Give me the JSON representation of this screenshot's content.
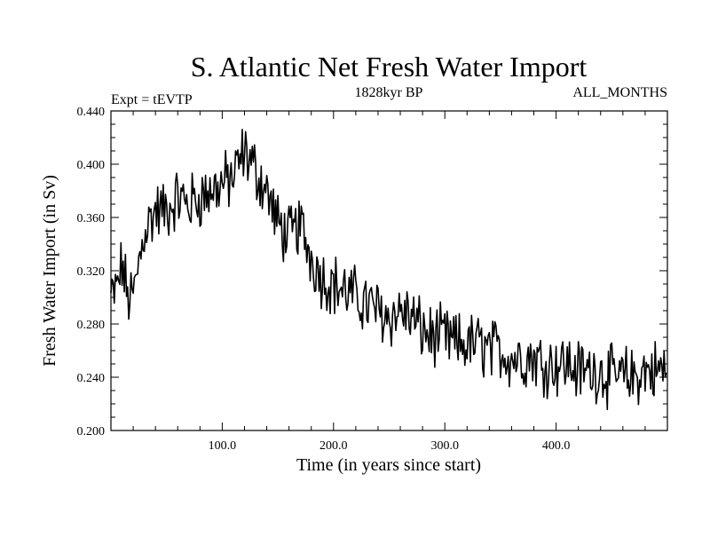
{
  "chart_data": {
    "type": "line",
    "title": "S. Atlantic Net Fresh Water Import",
    "subtitle_left": "Expt = tEVTP",
    "subtitle_center": "1828kyr BP",
    "subtitle_right": "ALL_MONTHS",
    "xlabel": "Time (in years since start)",
    "ylabel": "Fresh Water Import (in Sv)",
    "xlim": [
      0,
      500
    ],
    "ylim": [
      0.2,
      0.44
    ],
    "x_ticks": [
      100,
      200,
      300,
      400
    ],
    "x_tick_labels": [
      "100.0",
      "200.0",
      "300.0",
      "400.0"
    ],
    "y_ticks": [
      0.2,
      0.24,
      0.28,
      0.32,
      0.36,
      0.4,
      0.44
    ],
    "y_tick_labels": [
      "0.200",
      "0.240",
      "0.280",
      "0.320",
      "0.360",
      "0.400",
      "0.440"
    ],
    "grid": false,
    "series": [
      {
        "name": "Fresh Water Import",
        "color": "#000000",
        "x": [
          0,
          5,
          10,
          15,
          20,
          30,
          40,
          50,
          60,
          70,
          80,
          90,
          100,
          110,
          120,
          130,
          140,
          150,
          160,
          170,
          180,
          190,
          200,
          210,
          220,
          230,
          240,
          250,
          260,
          270,
          280,
          290,
          300,
          310,
          320,
          330,
          340,
          350,
          360,
          370,
          380,
          390,
          400,
          410,
          420,
          430,
          440,
          450,
          460,
          470,
          480,
          490,
          499
        ],
        "values": [
          0.3,
          0.305,
          0.325,
          0.3,
          0.3,
          0.35,
          0.365,
          0.365,
          0.375,
          0.37,
          0.375,
          0.38,
          0.385,
          0.39,
          0.41,
          0.395,
          0.38,
          0.355,
          0.345,
          0.355,
          0.33,
          0.315,
          0.31,
          0.305,
          0.3,
          0.295,
          0.29,
          0.285,
          0.29,
          0.285,
          0.275,
          0.27,
          0.27,
          0.265,
          0.265,
          0.265,
          0.26,
          0.26,
          0.255,
          0.255,
          0.255,
          0.25,
          0.25,
          0.25,
          0.245,
          0.245,
          0.245,
          0.24,
          0.24,
          0.24,
          0.245,
          0.245,
          0.245
        ]
      }
    ]
  }
}
